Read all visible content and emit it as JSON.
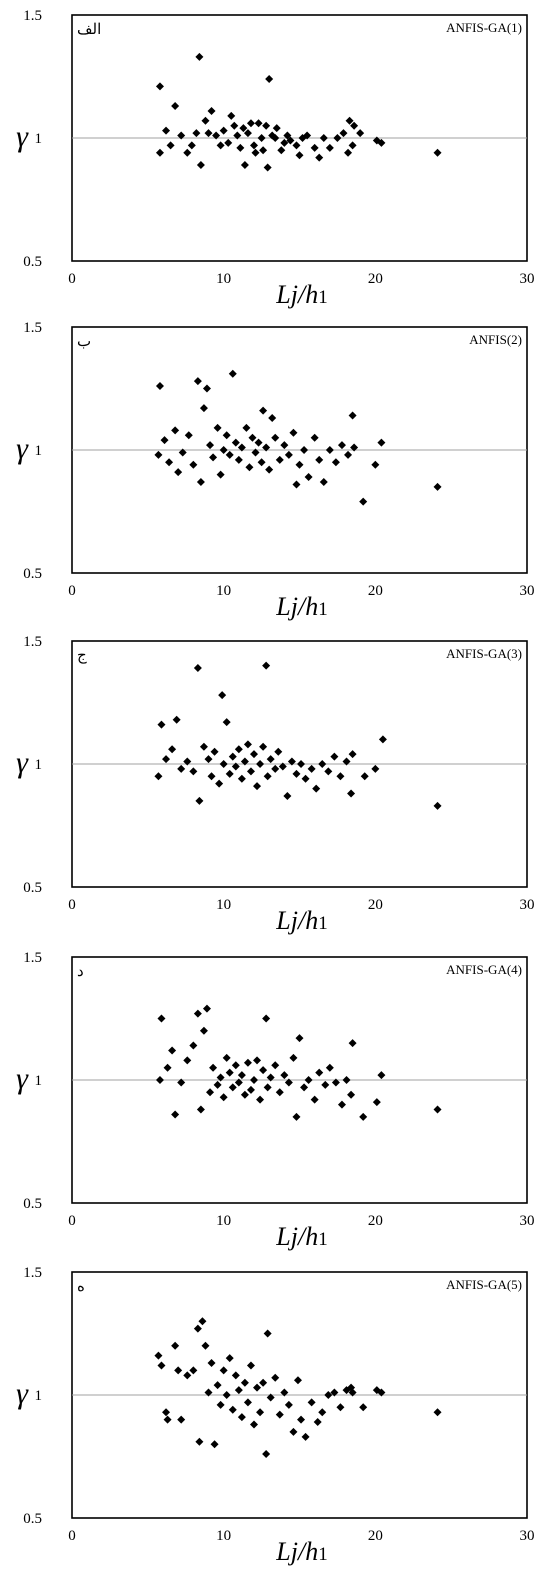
{
  "chart_data": [
    {
      "type": "scatter",
      "panel_letter": "الف",
      "model_label": "ANFIS-GA(1)",
      "xlabel_main": "Lj/h",
      "xlabel_sub": "1",
      "ylabel": "γ",
      "xlim": [
        0,
        30
      ],
      "ylim": [
        0.5,
        1.5
      ],
      "x_ticks": [
        0,
        10,
        20,
        30
      ],
      "y_ticks": [
        0.5,
        1,
        1.5
      ],
      "reference_line": 1,
      "marker_color": "#000000",
      "points": [
        [
          5.8,
          1.21
        ],
        [
          5.8,
          0.94
        ],
        [
          6.2,
          1.03
        ],
        [
          6.5,
          0.97
        ],
        [
          6.8,
          1.13
        ],
        [
          7.2,
          1.01
        ],
        [
          7.6,
          0.94
        ],
        [
          7.9,
          0.97
        ],
        [
          8.2,
          1.02
        ],
        [
          8.4,
          1.33
        ],
        [
          8.5,
          0.89
        ],
        [
          8.8,
          1.07
        ],
        [
          9.2,
          1.11
        ],
        [
          9.0,
          1.02
        ],
        [
          9.5,
          1.01
        ],
        [
          9.8,
          0.97
        ],
        [
          10.0,
          1.03
        ],
        [
          10.3,
          0.98
        ],
        [
          10.5,
          1.09
        ],
        [
          10.7,
          1.05
        ],
        [
          10.9,
          1.01
        ],
        [
          11.1,
          0.96
        ],
        [
          11.3,
          1.04
        ],
        [
          11.4,
          0.89
        ],
        [
          11.6,
          1.02
        ],
        [
          11.8,
          1.06
        ],
        [
          12.0,
          0.97
        ],
        [
          12.1,
          0.94
        ],
        [
          12.3,
          1.06
        ],
        [
          12.5,
          1.0
        ],
        [
          12.6,
          0.95
        ],
        [
          12.8,
          1.05
        ],
        [
          12.9,
          0.88
        ],
        [
          13.0,
          1.24
        ],
        [
          13.2,
          1.01
        ],
        [
          13.4,
          1.0
        ],
        [
          13.5,
          1.04
        ],
        [
          13.8,
          0.95
        ],
        [
          14.0,
          0.98
        ],
        [
          14.2,
          1.01
        ],
        [
          14.4,
          0.99
        ],
        [
          14.8,
          0.97
        ],
        [
          15.0,
          0.93
        ],
        [
          15.2,
          1.0
        ],
        [
          15.5,
          1.01
        ],
        [
          16.0,
          0.96
        ],
        [
          16.3,
          0.92
        ],
        [
          16.6,
          1.0
        ],
        [
          17.0,
          0.96
        ],
        [
          17.5,
          1.0
        ],
        [
          17.9,
          1.02
        ],
        [
          18.2,
          0.94
        ],
        [
          18.3,
          1.07
        ],
        [
          18.5,
          0.97
        ],
        [
          18.6,
          1.05
        ],
        [
          19.0,
          1.02
        ],
        [
          20.1,
          0.99
        ],
        [
          20.4,
          0.98
        ],
        [
          24.1,
          0.94
        ]
      ]
    },
    {
      "type": "scatter",
      "panel_letter": "ب",
      "model_label": "ANFIS(2)",
      "xlabel_main": "Lj/h",
      "xlabel_sub": "1",
      "ylabel": "γ",
      "xlim": [
        0,
        30
      ],
      "ylim": [
        0.5,
        1.5
      ],
      "x_ticks": [
        0,
        10,
        20,
        30
      ],
      "y_ticks": [
        0.5,
        1,
        1.5
      ],
      "reference_line": 1,
      "marker_color": "#000000",
      "points": [
        [
          5.8,
          1.26
        ],
        [
          5.7,
          0.98
        ],
        [
          6.1,
          1.04
        ],
        [
          6.4,
          0.95
        ],
        [
          6.8,
          1.08
        ],
        [
          7.0,
          0.91
        ],
        [
          7.3,
          0.99
        ],
        [
          7.7,
          1.06
        ],
        [
          8.0,
          0.94
        ],
        [
          8.3,
          1.28
        ],
        [
          8.5,
          0.87
        ],
        [
          8.7,
          1.17
        ],
        [
          8.9,
          1.25
        ],
        [
          9.1,
          1.02
        ],
        [
          9.3,
          0.97
        ],
        [
          9.6,
          1.09
        ],
        [
          9.8,
          0.9
        ],
        [
          10.0,
          1.0
        ],
        [
          10.2,
          1.06
        ],
        [
          10.4,
          0.98
        ],
        [
          10.6,
          1.31
        ],
        [
          10.8,
          1.03
        ],
        [
          11.0,
          0.96
        ],
        [
          11.2,
          1.01
        ],
        [
          11.5,
          1.09
        ],
        [
          11.7,
          0.93
        ],
        [
          11.9,
          1.05
        ],
        [
          12.1,
          0.99
        ],
        [
          12.3,
          1.03
        ],
        [
          12.5,
          0.95
        ],
        [
          12.6,
          1.16
        ],
        [
          12.8,
          1.01
        ],
        [
          13.0,
          0.92
        ],
        [
          13.2,
          1.13
        ],
        [
          13.4,
          1.05
        ],
        [
          13.7,
          0.96
        ],
        [
          14.0,
          1.02
        ],
        [
          14.3,
          0.98
        ],
        [
          14.6,
          1.07
        ],
        [
          14.8,
          0.86
        ],
        [
          15.0,
          0.94
        ],
        [
          15.3,
          1.0
        ],
        [
          15.6,
          0.89
        ],
        [
          16.0,
          1.05
        ],
        [
          16.3,
          0.96
        ],
        [
          16.6,
          0.87
        ],
        [
          17.0,
          1.0
        ],
        [
          17.4,
          0.95
        ],
        [
          17.8,
          1.02
        ],
        [
          18.2,
          0.98
        ],
        [
          18.5,
          1.14
        ],
        [
          18.6,
          1.01
        ],
        [
          19.2,
          0.79
        ],
        [
          20.0,
          0.94
        ],
        [
          20.4,
          1.03
        ],
        [
          24.1,
          0.85
        ]
      ]
    },
    {
      "type": "scatter",
      "panel_letter": "ج",
      "model_label": "ANFIS-GA(3)",
      "xlabel_main": "Lj/h",
      "xlabel_sub": "1",
      "ylabel": "γ",
      "xlim": [
        0,
        30
      ],
      "ylim": [
        0.5,
        1.5
      ],
      "x_ticks": [
        0,
        10,
        20,
        30
      ],
      "y_ticks": [
        0.5,
        1,
        1.5
      ],
      "reference_line": 1,
      "marker_color": "#000000",
      "points": [
        [
          5.9,
          1.16
        ],
        [
          5.7,
          0.95
        ],
        [
          6.2,
          1.02
        ],
        [
          6.6,
          1.06
        ],
        [
          6.9,
          1.18
        ],
        [
          7.2,
          0.98
        ],
        [
          7.6,
          1.01
        ],
        [
          8.0,
          0.97
        ],
        [
          8.3,
          1.39
        ],
        [
          8.4,
          0.85
        ],
        [
          8.7,
          1.07
        ],
        [
          9.0,
          1.02
        ],
        [
          9.2,
          0.95
        ],
        [
          9.4,
          1.05
        ],
        [
          9.7,
          0.92
        ],
        [
          9.9,
          1.28
        ],
        [
          10.0,
          1.0
        ],
        [
          10.2,
          1.17
        ],
        [
          10.4,
          0.96
        ],
        [
          10.6,
          1.03
        ],
        [
          10.8,
          0.99
        ],
        [
          11.0,
          1.06
        ],
        [
          11.2,
          0.94
        ],
        [
          11.4,
          1.01
        ],
        [
          11.6,
          1.08
        ],
        [
          11.8,
          0.97
        ],
        [
          12.0,
          1.04
        ],
        [
          12.2,
          0.91
        ],
        [
          12.4,
          1.0
        ],
        [
          12.6,
          1.07
        ],
        [
          12.8,
          1.4
        ],
        [
          12.9,
          0.95
        ],
        [
          13.1,
          1.02
        ],
        [
          13.4,
          0.98
        ],
        [
          13.6,
          1.05
        ],
        [
          13.9,
          0.99
        ],
        [
          14.2,
          0.87
        ],
        [
          14.5,
          1.01
        ],
        [
          14.8,
          0.96
        ],
        [
          15.1,
          1.0
        ],
        [
          15.4,
          0.94
        ],
        [
          15.8,
          0.98
        ],
        [
          16.1,
          0.9
        ],
        [
          16.5,
          1.0
        ],
        [
          16.9,
          0.97
        ],
        [
          17.3,
          1.03
        ],
        [
          17.7,
          0.95
        ],
        [
          18.1,
          1.01
        ],
        [
          18.4,
          0.88
        ],
        [
          18.5,
          1.04
        ],
        [
          19.3,
          0.95
        ],
        [
          20.0,
          0.98
        ],
        [
          20.5,
          1.1
        ],
        [
          24.1,
          0.83
        ]
      ]
    },
    {
      "type": "scatter",
      "panel_letter": "د",
      "model_label": "ANFIS-GA(4)",
      "xlabel_main": "Lj/h",
      "xlabel_sub": "1",
      "ylabel": "γ",
      "xlim": [
        0,
        30
      ],
      "ylim": [
        0.5,
        1.5
      ],
      "x_ticks": [
        0,
        10,
        20,
        30
      ],
      "y_ticks": [
        0.5,
        1,
        1.5
      ],
      "reference_line": 1,
      "marker_color": "#000000",
      "points": [
        [
          5.9,
          1.25
        ],
        [
          5.8,
          1.0
        ],
        [
          6.3,
          1.05
        ],
        [
          6.6,
          1.12
        ],
        [
          6.8,
          0.86
        ],
        [
          7.2,
          0.99
        ],
        [
          7.6,
          1.08
        ],
        [
          8.0,
          1.14
        ],
        [
          8.3,
          1.27
        ],
        [
          8.5,
          0.88
        ],
        [
          8.7,
          1.2
        ],
        [
          8.9,
          1.29
        ],
        [
          9.1,
          0.95
        ],
        [
          9.3,
          1.05
        ],
        [
          9.6,
          0.98
        ],
        [
          9.8,
          1.01
        ],
        [
          10.0,
          0.93
        ],
        [
          10.2,
          1.09
        ],
        [
          10.4,
          1.03
        ],
        [
          10.6,
          0.97
        ],
        [
          10.8,
          1.06
        ],
        [
          11.0,
          0.99
        ],
        [
          11.2,
          1.02
        ],
        [
          11.4,
          0.94
        ],
        [
          11.6,
          1.07
        ],
        [
          11.8,
          0.96
        ],
        [
          12.0,
          1.0
        ],
        [
          12.2,
          1.08
        ],
        [
          12.4,
          0.92
        ],
        [
          12.6,
          1.04
        ],
        [
          12.8,
          1.25
        ],
        [
          12.9,
          0.97
        ],
        [
          13.1,
          1.01
        ],
        [
          13.4,
          1.06
        ],
        [
          13.7,
          0.95
        ],
        [
          14.0,
          1.02
        ],
        [
          14.3,
          0.99
        ],
        [
          14.6,
          1.09
        ],
        [
          14.8,
          0.85
        ],
        [
          15.0,
          1.17
        ],
        [
          15.3,
          0.97
        ],
        [
          15.6,
          1.0
        ],
        [
          16.0,
          0.92
        ],
        [
          16.3,
          1.03
        ],
        [
          16.7,
          0.98
        ],
        [
          17.0,
          1.05
        ],
        [
          17.4,
          0.99
        ],
        [
          17.8,
          0.9
        ],
        [
          18.1,
          1.0
        ],
        [
          18.4,
          0.94
        ],
        [
          18.5,
          1.15
        ],
        [
          19.2,
          0.85
        ],
        [
          20.1,
          0.91
        ],
        [
          20.4,
          1.02
        ],
        [
          24.1,
          0.88
        ]
      ]
    },
    {
      "type": "scatter",
      "panel_letter": "ه",
      "model_label": "ANFIS-GA(5)",
      "xlabel_main": "Lj/h",
      "xlabel_sub": "1",
      "ylabel": "γ",
      "xlim": [
        0,
        30
      ],
      "ylim": [
        0.5,
        1.5
      ],
      "x_ticks": [
        0,
        10,
        20,
        30
      ],
      "y_ticks": [
        0.5,
        1,
        1.5
      ],
      "reference_line": 1,
      "marker_color": "#000000",
      "points": [
        [
          5.7,
          1.16
        ],
        [
          5.9,
          1.12
        ],
        [
          6.2,
          0.93
        ],
        [
          6.3,
          0.9
        ],
        [
          6.8,
          1.2
        ],
        [
          7.0,
          1.1
        ],
        [
          7.2,
          0.9
        ],
        [
          7.6,
          1.08
        ],
        [
          8.0,
          1.1
        ],
        [
          8.3,
          1.27
        ],
        [
          8.4,
          0.81
        ],
        [
          8.6,
          1.3
        ],
        [
          8.8,
          1.2
        ],
        [
          9.0,
          1.01
        ],
        [
          9.2,
          1.13
        ],
        [
          9.4,
          0.8
        ],
        [
          9.6,
          1.04
        ],
        [
          9.8,
          0.96
        ],
        [
          10.0,
          1.1
        ],
        [
          10.2,
          1.0
        ],
        [
          10.4,
          1.15
        ],
        [
          10.6,
          0.94
        ],
        [
          10.8,
          1.08
        ],
        [
          11.0,
          1.02
        ],
        [
          11.2,
          0.91
        ],
        [
          11.4,
          1.05
        ],
        [
          11.6,
          0.97
        ],
        [
          11.8,
          1.12
        ],
        [
          12.0,
          0.88
        ],
        [
          12.2,
          1.03
        ],
        [
          12.4,
          0.93
        ],
        [
          12.6,
          1.05
        ],
        [
          12.8,
          0.76
        ],
        [
          12.9,
          1.25
        ],
        [
          13.1,
          0.99
        ],
        [
          13.4,
          1.07
        ],
        [
          13.7,
          0.92
        ],
        [
          14.0,
          1.01
        ],
        [
          14.3,
          0.96
        ],
        [
          14.6,
          0.85
        ],
        [
          14.9,
          1.06
        ],
        [
          15.1,
          0.9
        ],
        [
          15.4,
          0.83
        ],
        [
          15.8,
          0.97
        ],
        [
          16.2,
          0.89
        ],
        [
          16.5,
          0.93
        ],
        [
          16.9,
          1.0
        ],
        [
          17.3,
          1.01
        ],
        [
          17.7,
          0.95
        ],
        [
          18.1,
          1.02
        ],
        [
          18.4,
          1.03
        ],
        [
          18.5,
          1.01
        ],
        [
          19.2,
          0.95
        ],
        [
          20.1,
          1.02
        ],
        [
          20.4,
          1.01
        ],
        [
          24.1,
          0.93
        ]
      ]
    }
  ]
}
